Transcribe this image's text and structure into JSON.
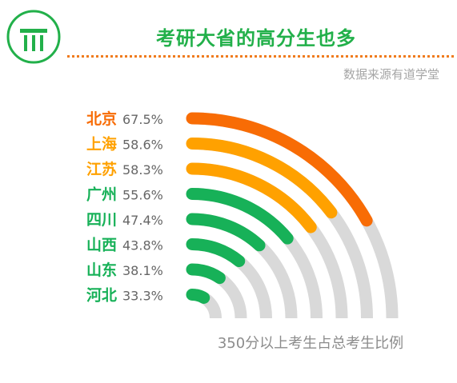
{
  "header": {
    "title": "考研大省的高分生也多",
    "source": "数据来源有道学堂"
  },
  "caption": "350分以上考生占总考生比例",
  "colors": {
    "brand_green": "#22b04a",
    "orange": "#f86c05",
    "amber": "#ffa100",
    "green": "#17b158",
    "track": "#d9d9d9"
  },
  "chart_data": {
    "type": "radial_bar",
    "title": "考研大省的高分生也多",
    "caption": "350分以上考生占总考生比例",
    "categories": [
      "北京",
      "上海",
      "江苏",
      "广州",
      "四川",
      "山西",
      "山东",
      "河北"
    ],
    "values": [
      67.5,
      58.6,
      58.3,
      55.6,
      47.4,
      43.8,
      38.1,
      33.3
    ],
    "value_labels": [
      "67.5%",
      "58.6%",
      "58.3%",
      "55.6%",
      "47.4%",
      "43.8%",
      "38.1%",
      "33.3%"
    ],
    "colors": [
      "#f86c05",
      "#ffa100",
      "#ffa100",
      "#17b158",
      "#17b158",
      "#17b158",
      "#17b158",
      "#17b158"
    ],
    "max": 100,
    "track_color": "#d9d9d9"
  }
}
